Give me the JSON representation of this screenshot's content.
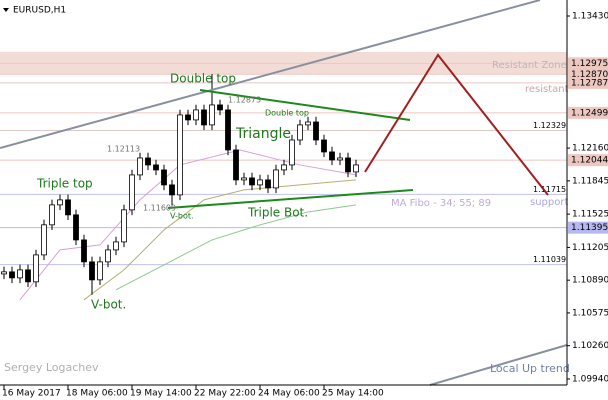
{
  "chart_data": {
    "type": "candlestick",
    "title": "EURUSD,H1",
    "xlim": [
      -0.5,
      70.375
    ],
    "ylim": [
      1.09882,
      1.13584
    ],
    "yticks": [
      {
        "value": 1.1343,
        "label": "1.13430"
      },
      {
        "value": 1.1216,
        "label": "1.12160"
      },
      1.11845,
      1.11525,
      1.11205,
      {
        "value": 1.1089,
        "label": "1.10890"
      },
      1.10575,
      {
        "value": 1.1026,
        "label": "1.10260"
      },
      {
        "value": 1.0994,
        "label": "1.09940"
      }
    ],
    "xticks": [
      {
        "value": 0,
        "label": "16 May 2017"
      },
      {
        "value": 8,
        "label": "18 May 06:00"
      },
      {
        "value": 16,
        "label": "19 May 14:00"
      },
      {
        "value": 24,
        "label": "22 May 22:00"
      },
      {
        "value": 32,
        "label": "24 May 06:00"
      },
      {
        "value": 40,
        "label": "25 May 14:00"
      }
    ],
    "open": [
      1.1095,
      1.1097,
      1.10912,
      1.10989,
      1.10874,
      1.11133,
      1.11422,
      1.11614,
      1.11662,
      1.11518,
      1.11277,
      1.11066,
      1.10893,
      1.11066,
      1.11181,
      1.11258,
      1.11566,
      1.11902,
      1.12065,
      1.11998,
      1.1195,
      1.11806,
      1.1171,
      1.12479,
      1.12431,
      1.12527,
      1.12383,
      1.12575,
      1.12527,
      1.12142,
      1.11854,
      1.11873,
      1.11806,
      1.11854,
      1.11777,
      1.1195,
      1.11998,
      1.12238,
      1.12383,
      1.12411,
      1.12238,
      1.12123,
      1.12046,
      1.12065,
      1.11931
    ],
    "high": [
      1.1102,
      1.1102,
      1.11039,
      1.11039,
      1.11183,
      1.11472,
      1.11664,
      1.11712,
      1.11712,
      1.11568,
      1.11327,
      1.11116,
      1.11116,
      1.11231,
      1.11308,
      1.11616,
      1.11952,
      1.12115,
      1.12115,
      1.12048,
      1.12,
      1.11856,
      1.12529,
      1.12529,
      1.12577,
      1.12577,
      1.12873,
      1.12625,
      1.12577,
      1.12192,
      1.11923,
      1.11923,
      1.11904,
      1.11904,
      1.12,
      1.12048,
      1.12288,
      1.12433,
      1.12461,
      1.12461,
      1.12288,
      1.12173,
      1.12115,
      1.12115,
      1.12048
    ],
    "low": [
      1.109,
      1.10862,
      1.10862,
      1.10824,
      1.10824,
      1.11083,
      1.11372,
      1.11564,
      1.11468,
      1.11227,
      1.11016,
      1.1075,
      1.10843,
      1.11016,
      1.11131,
      1.11208,
      1.11516,
      1.11852,
      1.11948,
      1.119,
      1.11756,
      1.11609,
      1.1166,
      1.12381,
      1.12381,
      1.12333,
      1.12333,
      1.12477,
      1.12092,
      1.11804,
      1.11804,
      1.11756,
      1.11756,
      1.11727,
      1.11727,
      1.119,
      1.11948,
      1.12188,
      1.12333,
      1.12188,
      1.12073,
      1.11996,
      1.11996,
      1.11881,
      1.11881
    ],
    "close": [
      1.1097,
      1.10912,
      1.10989,
      1.10874,
      1.11133,
      1.11422,
      1.11614,
      1.11662,
      1.11518,
      1.11277,
      1.11066,
      1.10893,
      1.11066,
      1.11181,
      1.11258,
      1.11566,
      1.11902,
      1.12065,
      1.11998,
      1.1195,
      1.11806,
      1.1171,
      1.12479,
      1.12431,
      1.12527,
      1.12383,
      1.12575,
      1.12527,
      1.12142,
      1.11854,
      1.11873,
      1.11806,
      1.11854,
      1.11777,
      1.1195,
      1.11998,
      1.12238,
      1.12383,
      1.12411,
      1.12238,
      1.12123,
      1.12046,
      1.12065,
      1.11931,
      1.11998
    ],
    "ma_lines": [
      {
        "color": "#d8a0d8",
        "x": [
          2,
          7,
          12,
          17,
          22,
          29.5,
          37,
          44
        ],
        "values": [
          1.10701,
          1.11181,
          1.11229,
          1.11662,
          1.11998,
          1.12142,
          1.11998,
          1.11902
        ]
      },
      {
        "color": "#b8b070",
        "x": [
          10,
          15,
          20,
          25,
          30,
          37,
          44
        ],
        "values": [
          1.10701,
          1.10989,
          1.11373,
          1.11662,
          1.11758,
          1.11806,
          1.11854
        ]
      },
      {
        "color": "#90c890",
        "x": [
          14,
          20,
          26,
          32,
          38,
          44
        ],
        "values": [
          1.10797,
          1.11037,
          1.11277,
          1.11422,
          1.11546,
          1.11614
        ]
      }
    ],
    "zone": [
      1.1287,
      1.13084
    ],
    "box_levels": [
      {
        "value": 1.12975,
        "label": "1.12975",
        "color": "#ecc8c0"
      },
      {
        "value": 1.1287,
        "label": "1.12870",
        "color": "#ecc8c0"
      },
      {
        "value": 1.12787,
        "label": "1.12787",
        "color": "#ecc8c0"
      },
      {
        "value": 1.12499,
        "label": "1.12499",
        "color": "#ecc8c0"
      },
      {
        "value": 1.12044,
        "label": "1.12044",
        "color": "#ecc8c0"
      },
      {
        "value": 1.11395,
        "label": "1.11395",
        "color": "#b8b8f0"
      }
    ],
    "inline_levels": [
      {
        "value": 1.12329,
        "label": "1.12329",
        "color": "#e0c8c8"
      },
      {
        "value": 1.11715,
        "label": "1.11715",
        "color": "#c0c0f0"
      },
      {
        "value": 1.11039,
        "label": "1.11039",
        "color": "#c0c0f0"
      }
    ],
    "annotations": [
      "Double top",
      "Double top",
      "Triangle",
      "Triple top",
      "Triple Bot.",
      "V-bot.",
      "V-bot.",
      "1.12873",
      "1.12113",
      "1.11609",
      "MA Fibo - 34; 55; 89",
      "Resistant Zone",
      "resistant",
      "support",
      "Sergey Logachev",
      "Local Up trend"
    ]
  }
}
